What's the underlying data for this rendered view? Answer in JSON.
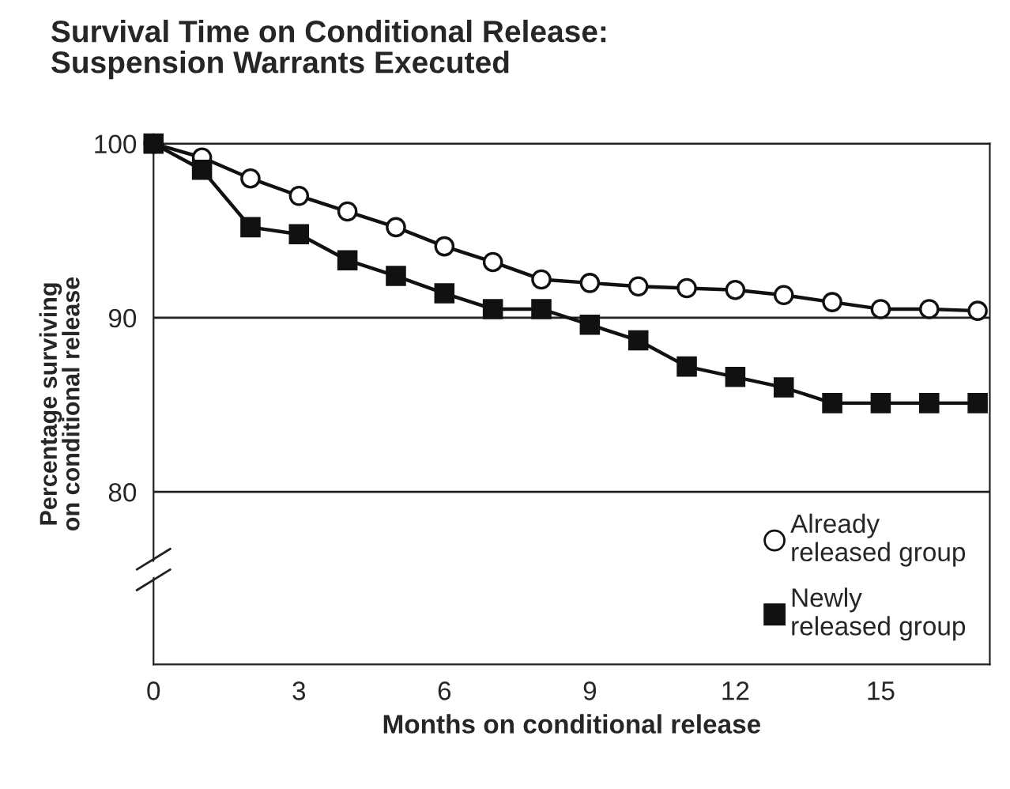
{
  "chart_data": {
    "type": "line",
    "title": "Survival Time on Conditional Release:\nSuspension Warrants Executed",
    "xlabel": "Months on conditional release",
    "ylabel": "Percentage surviving\non conditional release",
    "x": [
      0,
      1,
      2,
      3,
      4,
      5,
      6,
      7,
      8,
      9,
      10,
      11,
      12,
      13,
      14,
      15,
      16,
      17
    ],
    "series": [
      {
        "name": "Already\nreleased group",
        "color": "#111111",
        "marker": "circle",
        "values": [
          100,
          99.2,
          98.0,
          97.0,
          96.1,
          95.2,
          94.1,
          93.2,
          92.2,
          92.0,
          91.8,
          91.7,
          91.6,
          91.3,
          90.9,
          90.5,
          90.5,
          90.4
        ]
      },
      {
        "name": "Newly\nreleased group",
        "color": "#111111",
        "marker": "square",
        "values": [
          100,
          98.5,
          95.2,
          94.8,
          93.3,
          92.4,
          91.4,
          90.5,
          90.5,
          89.6,
          88.7,
          87.2,
          86.6,
          86.0,
          85.1,
          85.1,
          85.1,
          85.1
        ]
      }
    ],
    "xlim": [
      0,
      17.25
    ],
    "xticks": [
      0,
      3,
      6,
      9,
      12,
      15
    ],
    "ylim": [
      70.1,
      100
    ],
    "yticks": [
      80,
      90,
      100
    ],
    "grid": "y",
    "legend": "bottom right",
    "line_style": "solid"
  }
}
